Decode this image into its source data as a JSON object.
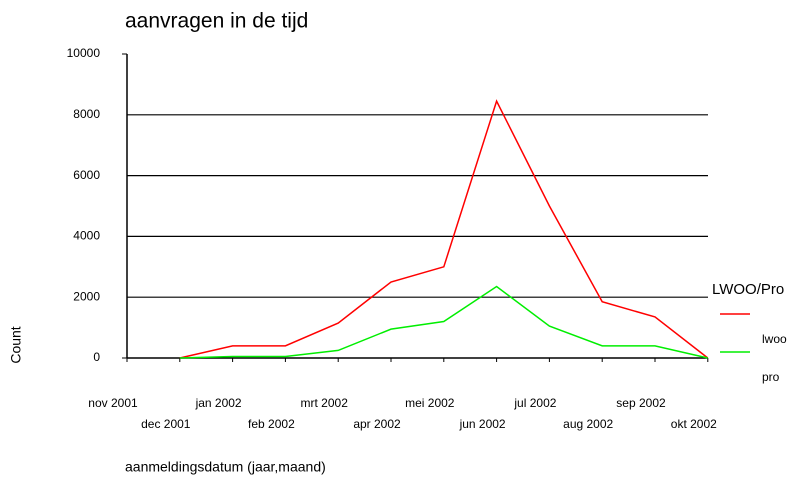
{
  "chart_data": {
    "type": "line",
    "title": "aanvragen in de tijd",
    "x_label": "aanmeldingsdatum (jaar,maand)",
    "y_label": "Count",
    "legend_title": "LWOO/Pro",
    "categories": [
      "nov 2001",
      "dec 2001",
      "jan 2002",
      "feb 2002",
      "mrt 2002",
      "apr 2002",
      "mei 2002",
      "jun 2002",
      "jul 2002",
      "aug 2002",
      "sep 2002",
      "okt 2002"
    ],
    "series": [
      {
        "name": "lwoo",
        "color": "#ff0000",
        "values": [
          null,
          0,
          400,
          400,
          1150,
          2500,
          3000,
          8450,
          5000,
          1850,
          1350,
          0
        ]
      },
      {
        "name": "pro",
        "color": "#00ee00",
        "values": [
          null,
          0,
          50,
          50,
          250,
          950,
          1200,
          2350,
          1050,
          400,
          400,
          0
        ]
      }
    ],
    "ylim": [
      0,
      10000
    ],
    "yticks": [
      0,
      2000,
      4000,
      6000,
      8000,
      10000
    ],
    "grid": true
  }
}
